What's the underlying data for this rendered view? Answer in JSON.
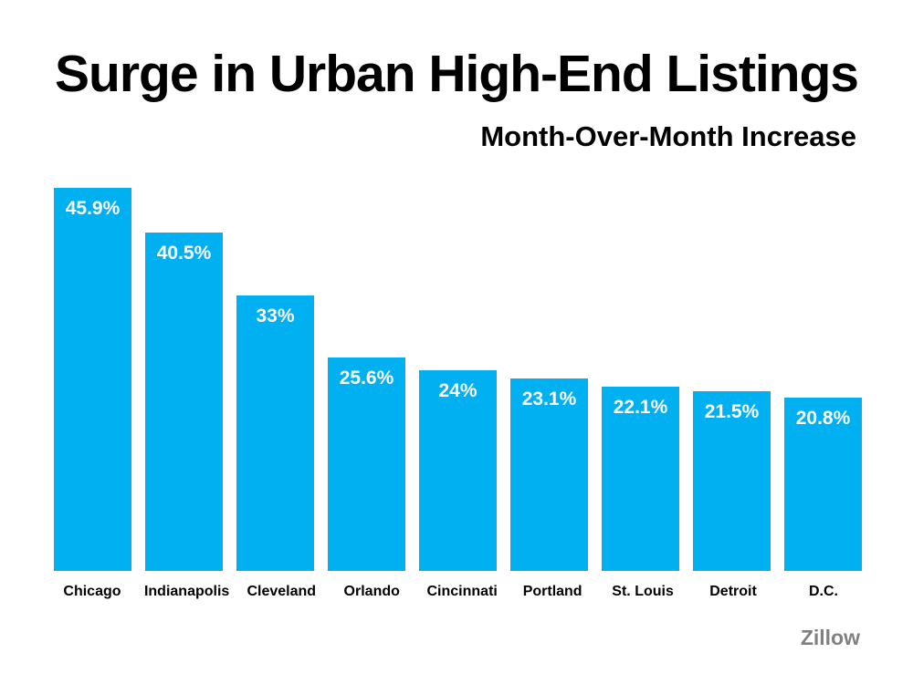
{
  "slide": {
    "title": "Surge in Urban High-End Listings",
    "subtitle": "Month-Over-Month Increase",
    "source": "Zillow"
  },
  "colors": {
    "background": "#FFFFFF",
    "bar": "#00B0F0",
    "bar_label": "#FFFFFF",
    "title": "#000000",
    "source": "#808080"
  },
  "chart_data": {
    "type": "bar",
    "title": "Surge in Urban High-End Listings",
    "subtitle": "Month-Over-Month Increase",
    "categories": [
      "Chicago",
      "Indianapolis",
      "Cleveland",
      "Orlando",
      "Cincinnati",
      "Portland",
      "St. Louis",
      "Detroit",
      "D.C."
    ],
    "values": [
      45.9,
      40.5,
      33,
      25.6,
      24,
      23.1,
      22.1,
      21.5,
      20.8
    ],
    "value_labels": [
      "45.9%",
      "40.5%",
      "33%",
      "25.6%",
      "24%",
      "23.1%",
      "22.1%",
      "21.5%",
      "20.8%"
    ],
    "xlabel": "",
    "ylabel": "",
    "ylim": [
      0,
      46
    ],
    "grid": false,
    "legend": "none",
    "value_label_position": "inside-top",
    "source": "Zillow"
  }
}
